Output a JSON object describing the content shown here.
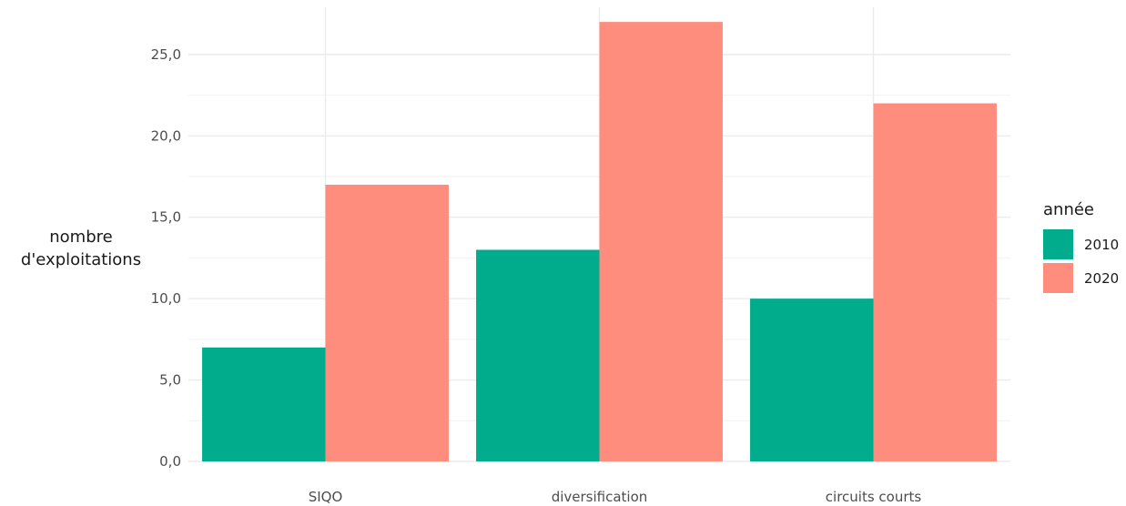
{
  "chart_data": {
    "type": "bar",
    "categories": [
      "SIQO",
      "diversification",
      "circuits courts"
    ],
    "series": [
      {
        "name": "2010",
        "values": [
          7,
          13,
          10
        ],
        "color": "#00AC8C"
      },
      {
        "name": "2020",
        "values": [
          17,
          27,
          22
        ],
        "color": "#FF8D7E"
      }
    ],
    "ylabel_lines": [
      "nombre",
      "d'exploitations"
    ],
    "xlabel": "",
    "ylim": [
      0,
      27.9
    ],
    "yticks": [
      0,
      5,
      10,
      15,
      20,
      25
    ],
    "ytick_labels": [
      "0,0",
      "5,0",
      "10,0",
      "15,0",
      "20,0",
      "25,0"
    ],
    "legend_title": "année",
    "legend_position": "right",
    "grid": true
  }
}
